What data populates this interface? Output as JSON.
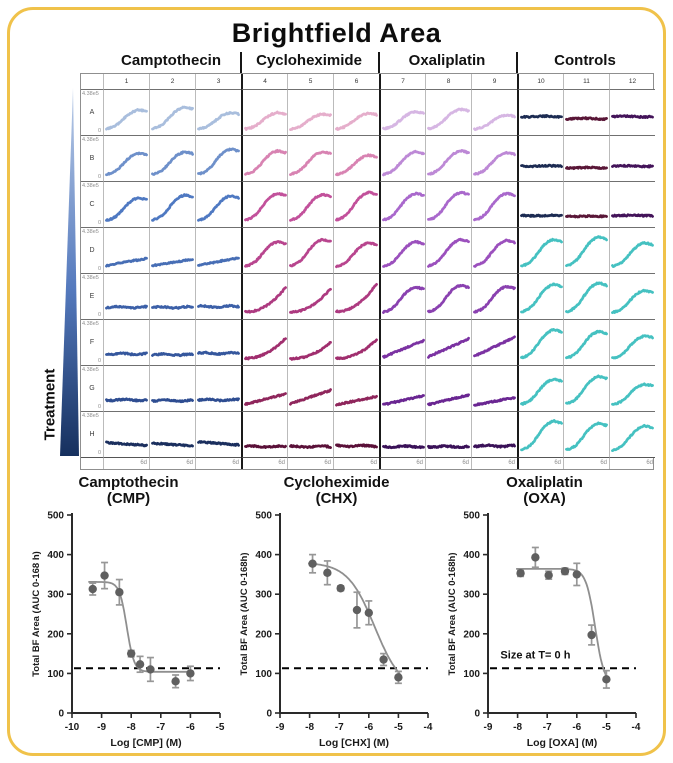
{
  "title": "Brightfield Area",
  "frame_color": "#f0c24a",
  "plate": {
    "treatment_label": "Treatment",
    "group_headers": [
      "Camptothecin",
      "Cycloheximide",
      "Oxaliplatin",
      "Controls"
    ],
    "column_numbers": [
      "1",
      "2",
      "3",
      "4",
      "5",
      "6",
      "7",
      "8",
      "9",
      "10",
      "11",
      "12"
    ],
    "y_axis_top": "4.38e5",
    "y_axis_bottom": "0",
    "x_axis_end": "6d",
    "gradient_top_color": "#b9cbe7",
    "gradient_bottom_color": "#16305e",
    "rows": [
      {
        "letter": "A",
        "cells": [
          [
            "growPeak",
            0.6,
            "#a9bedd"
          ],
          [
            "growPeak",
            0.68,
            "#a9bedd"
          ],
          [
            "growPeak",
            0.52,
            "#a9bedd"
          ],
          [
            "growPeak",
            0.52,
            "#e5aecb"
          ],
          [
            "growPeak",
            0.48,
            "#e5aecb"
          ],
          [
            "growPeak",
            0.5,
            "#e5aecb"
          ],
          [
            "growPeak",
            0.55,
            "#d6b6e3"
          ],
          [
            "growPeak",
            0.62,
            "#d6b6e3"
          ],
          [
            "growPeak",
            0.45,
            "#d6b6e3"
          ],
          [
            "flatMid",
            0.4,
            "#1c2b52"
          ],
          [
            "flatMid",
            0.34,
            "#591637"
          ],
          [
            "flatMid",
            0.4,
            "#431359"
          ]
        ]
      },
      {
        "letter": "B",
        "cells": [
          [
            "growPeak",
            0.68,
            "#6e90ca"
          ],
          [
            "growPeak",
            0.72,
            "#6e90ca"
          ],
          [
            "growPeak",
            0.8,
            "#6e90ca"
          ],
          [
            "growPeak",
            0.75,
            "#d883b2"
          ],
          [
            "growPeak",
            0.72,
            "#d883b2"
          ],
          [
            "growPeak",
            0.62,
            "#d883b2"
          ],
          [
            "growPeak",
            0.72,
            "#bd89d6"
          ],
          [
            "growPeak",
            0.75,
            "#bd89d6"
          ],
          [
            "growPeak",
            0.7,
            "#bd89d6"
          ],
          [
            "flatMid",
            0.3,
            "#1c2b52"
          ],
          [
            "flatMid",
            0.25,
            "#591637"
          ],
          [
            "flatMid",
            0.3,
            "#431359"
          ]
        ]
      },
      {
        "letter": "C",
        "cells": [
          [
            "growPeak",
            0.72,
            "#4f79c2"
          ],
          [
            "growPeak",
            0.8,
            "#4f79c2"
          ],
          [
            "growPeak",
            0.78,
            "#4f79c2"
          ],
          [
            "growPeak",
            0.85,
            "#c2519b"
          ],
          [
            "growPeak",
            0.82,
            "#c2519b"
          ],
          [
            "growPeak",
            0.88,
            "#c2519b"
          ],
          [
            "growPeak",
            0.85,
            "#a968cc"
          ],
          [
            "growPeak",
            0.88,
            "#a968cc"
          ],
          [
            "growPeak",
            0.85,
            "#a968cc"
          ],
          [
            "flatMid",
            0.2,
            "#1c2b52"
          ],
          [
            "flatMid",
            0.18,
            "#591637"
          ],
          [
            "flatMid",
            0.2,
            "#431359"
          ]
        ]
      },
      {
        "letter": "D",
        "cells": [
          [
            "riseSlow",
            0.28,
            "#476eb5"
          ],
          [
            "riseSlow",
            0.26,
            "#476eb5"
          ],
          [
            "riseSlow",
            0.3,
            "#476eb5"
          ],
          [
            "growPeak",
            0.78,
            "#b8458e"
          ],
          [
            "growPeak",
            0.85,
            "#b8458e"
          ],
          [
            "growPeak",
            0.75,
            "#b8458e"
          ],
          [
            "growPeak",
            0.78,
            "#9b50bd"
          ],
          [
            "growPeak",
            0.85,
            "#9b50bd"
          ],
          [
            "growPeak",
            0.82,
            "#9b50bd"
          ],
          [
            "growPeak",
            0.85,
            "#45c1c1"
          ],
          [
            "growPeak",
            0.92,
            "#45c1c1"
          ],
          [
            "growPeak",
            0.75,
            "#45c1c1"
          ]
        ]
      },
      {
        "letter": "E",
        "cells": [
          [
            "lowFlat",
            0.22,
            "#3c60a8"
          ],
          [
            "lowFlat",
            0.22,
            "#3c60a8"
          ],
          [
            "lowFlat",
            0.24,
            "#3c60a8"
          ],
          [
            "growLate",
            0.75,
            "#ad3a80"
          ],
          [
            "growLate",
            0.72,
            "#ad3a80"
          ],
          [
            "growLate",
            0.85,
            "#ad3a80"
          ],
          [
            "growPeak",
            0.8,
            "#8a41b0"
          ],
          [
            "growPeak",
            0.85,
            "#8a41b0"
          ],
          [
            "growPeak",
            0.82,
            "#8a41b0"
          ],
          [
            "growPeak",
            0.88,
            "#45c1c1"
          ],
          [
            "growPeak",
            0.92,
            "#45c1c1"
          ],
          [
            "growPeak",
            0.7,
            "#45c1c1"
          ]
        ]
      },
      {
        "letter": "F",
        "cells": [
          [
            "lowFlat",
            0.2,
            "#35579d"
          ],
          [
            "lowFlat",
            0.18,
            "#35579d"
          ],
          [
            "lowFlat",
            0.22,
            "#35579d"
          ],
          [
            "growLate",
            0.62,
            "#a02e6e"
          ],
          [
            "growLate",
            0.5,
            "#a02e6e"
          ],
          [
            "growLate",
            0.58,
            "#a02e6e"
          ],
          [
            "riseLin",
            0.55,
            "#7b32a2"
          ],
          [
            "riseLin",
            0.6,
            "#7b32a2"
          ],
          [
            "riseLin",
            0.65,
            "#7b32a2"
          ],
          [
            "growPeak",
            0.9,
            "#45c1c1"
          ],
          [
            "growPeak",
            0.85,
            "#45c1c1"
          ],
          [
            "growPeak",
            0.72,
            "#45c1c1"
          ]
        ]
      },
      {
        "letter": "G",
        "cells": [
          [
            "lowFlat",
            0.2,
            "#2e4d91"
          ],
          [
            "lowFlat",
            0.18,
            "#2e4d91"
          ],
          [
            "lowFlat",
            0.2,
            "#2e4d91"
          ],
          [
            "riseLin",
            0.35,
            "#8f265c"
          ],
          [
            "riseLin",
            0.45,
            "#8f265c"
          ],
          [
            "riseLin",
            0.28,
            "#8f265c"
          ],
          [
            "riseLin",
            0.3,
            "#6a2692"
          ],
          [
            "riseLin",
            0.32,
            "#6a2692"
          ],
          [
            "riseLin",
            0.25,
            "#6a2692"
          ],
          [
            "growPeak",
            0.8,
            "#45c1c1"
          ],
          [
            "growPeak",
            0.88,
            "#45c1c1"
          ],
          [
            "growPeak",
            0.65,
            "#45c1c1"
          ]
        ]
      },
      {
        "letter": "H",
        "cells": [
          [
            "flatDecline",
            0.28,
            "#1b2f5e"
          ],
          [
            "flatDecline",
            0.26,
            "#1b2f5e"
          ],
          [
            "flatDecline",
            0.3,
            "#1b2f5e"
          ],
          [
            "lowFlat",
            0.18,
            "#5a1038"
          ],
          [
            "lowFlat",
            0.18,
            "#5a1038"
          ],
          [
            "lowFlat",
            0.2,
            "#5a1038"
          ],
          [
            "lowFlat",
            0.18,
            "#3a1158"
          ],
          [
            "lowFlat",
            0.18,
            "#3a1158"
          ],
          [
            "lowFlat",
            0.2,
            "#3a1158"
          ],
          [
            "growPeak",
            0.92,
            "#45c1c1"
          ],
          [
            "growPeak",
            0.85,
            "#45c1c1"
          ],
          [
            "growPeak",
            0.78,
            "#45c1c1"
          ]
        ]
      }
    ]
  },
  "chart_data": [
    {
      "type": "scatter",
      "title": "Camptothecin",
      "subtitle": "(CMP)",
      "xlabel": "Log [CMP] (M)",
      "ylabel": "Total BF Area  (AUC 0-168 h)",
      "xlim": [
        -10,
        -5
      ],
      "ylim": [
        0,
        500
      ],
      "xticks": [
        -10,
        -9,
        -8,
        -7,
        -6,
        -5
      ],
      "yticks": [
        0,
        100,
        200,
        300,
        400,
        500
      ],
      "baseline_dashed_y": 113,
      "points": [
        [
          -9.3,
          313,
          15
        ],
        [
          -8.9,
          347,
          33
        ],
        [
          -8.4,
          305,
          32
        ],
        [
          -8.0,
          150,
          8
        ],
        [
          -7.7,
          123,
          20
        ],
        [
          -7.35,
          110,
          30
        ],
        [
          -6.5,
          80,
          16
        ],
        [
          -6.0,
          100,
          18
        ]
      ],
      "fit": {
        "top": 331,
        "bottom": 104,
        "logec50": -8.15,
        "hill": 3.5
      }
    },
    {
      "type": "scatter",
      "title": "Cycloheximide",
      "subtitle": "(CHX)",
      "xlabel": "Log [CHX] (M)",
      "ylabel": "Total BF Area  (AUC 0-168h)",
      "xlim": [
        -9,
        -4
      ],
      "ylim": [
        0,
        500
      ],
      "xticks": [
        -9,
        -8,
        -7,
        -6,
        -5,
        -4
      ],
      "yticks": [
        0,
        100,
        200,
        300,
        400,
        500
      ],
      "baseline_dashed_y": 113,
      "points": [
        [
          -7.9,
          377,
          23
        ],
        [
          -7.4,
          354,
          30
        ],
        [
          -6.95,
          315,
          6
        ],
        [
          -6.4,
          260,
          45
        ],
        [
          -6.0,
          253,
          30
        ],
        [
          -5.5,
          135,
          15
        ],
        [
          -5.0,
          90,
          15
        ]
      ],
      "fit": {
        "top": 380,
        "bottom": 55,
        "logec50": -5.8,
        "hill": 0.95
      }
    },
    {
      "type": "scatter",
      "title": "Oxaliplatin",
      "subtitle": "(OXA)",
      "xlabel": "Log [OXA] (M)",
      "ylabel": "Total BF Area  (AUC 0-168h)",
      "xlim": [
        -9,
        -4
      ],
      "ylim": [
        0,
        500
      ],
      "xticks": [
        -9,
        -8,
        -7,
        -6,
        -5,
        -4
      ],
      "yticks": [
        0,
        100,
        200,
        300,
        400,
        500
      ],
      "baseline_dashed_y": 113,
      "annotation": "Size at T= 0 h",
      "points": [
        [
          -7.9,
          353,
          8
        ],
        [
          -7.4,
          393,
          25
        ],
        [
          -6.95,
          348,
          10
        ],
        [
          -6.4,
          358,
          8
        ],
        [
          -6.0,
          350,
          28
        ],
        [
          -5.5,
          197,
          25
        ],
        [
          -5.0,
          85,
          22
        ]
      ],
      "fit": {
        "top": 364,
        "bottom": 70,
        "logec50": -5.38,
        "hill": 2.8
      }
    }
  ],
  "style": {
    "marker_color": "#5f5f5f",
    "errorbar_color": "#979797",
    "fitline_color": "#8f8f8f",
    "dashed_color": "#000000"
  }
}
